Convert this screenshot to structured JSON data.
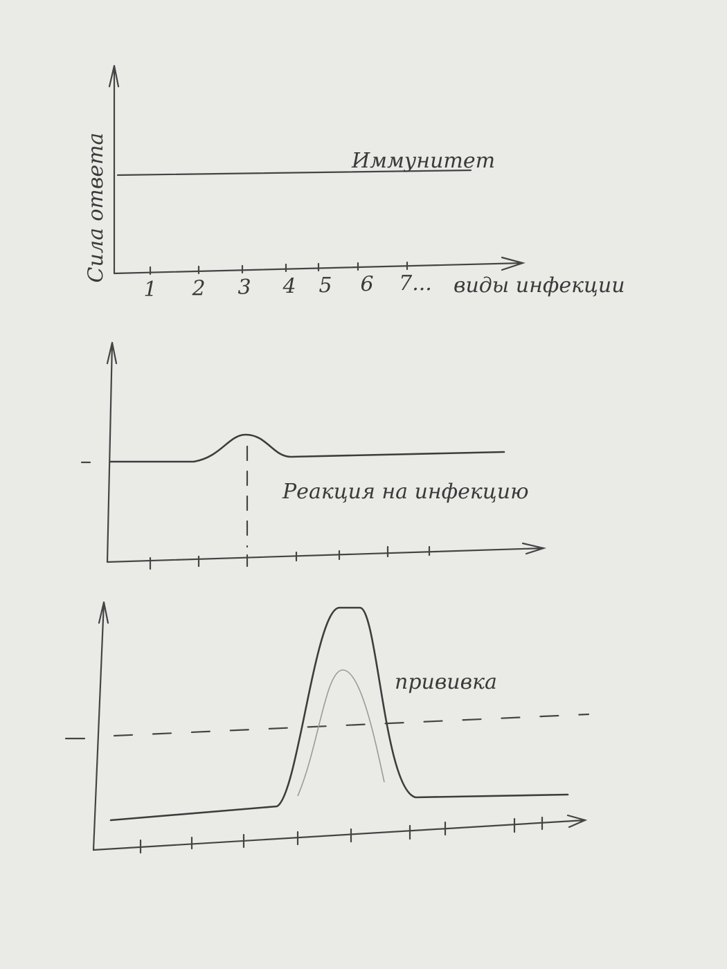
{
  "graphs": [
    {
      "y_label": "Сила ответа",
      "x_ticks": [
        "1",
        "2",
        "3",
        "4",
        "5",
        "6",
        "7..."
      ],
      "x_label": "виды инфекции",
      "line_label": "Иммунитет"
    },
    {
      "curve_label": "Реакция на инфекцию"
    },
    {
      "curve_label": "прививка"
    }
  ]
}
